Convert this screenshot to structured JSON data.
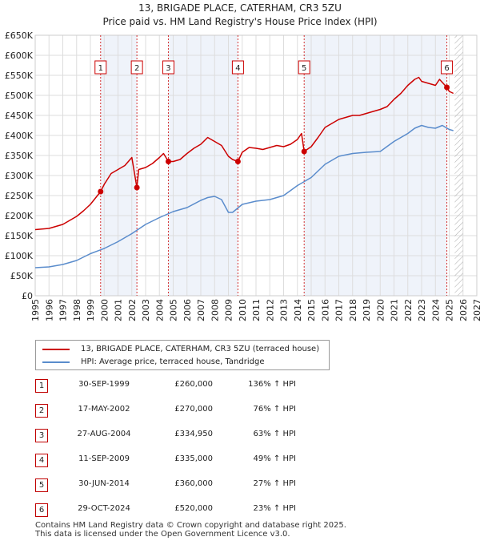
{
  "title": "13, BRIGADE PLACE, CATERHAM, CR3 5ZU",
  "subtitle": "Price paid vs. HM Land Registry's House Price Index (HPI)",
  "colors": {
    "property": "#cc0000",
    "hpi": "#5a8ccc",
    "marker_box": "#cc0000",
    "shade": "#e8eef8"
  },
  "legend": {
    "property_label": "13, BRIGADE PLACE, CATERHAM, CR3 5ZU (terraced house)",
    "hpi_label": "HPI: Average price, terraced house, Tandridge"
  },
  "sales": [
    {
      "num": "1",
      "date": "30-SEP-1999",
      "price": "£260,000",
      "hpi": "136% ↑ HPI"
    },
    {
      "num": "2",
      "date": "17-MAY-2002",
      "price": "£270,000",
      "hpi": "76% ↑ HPI"
    },
    {
      "num": "3",
      "date": "27-AUG-2004",
      "price": "£334,950",
      "hpi": "63% ↑ HPI"
    },
    {
      "num": "4",
      "date": "11-SEP-2009",
      "price": "£335,000",
      "hpi": "49% ↑ HPI"
    },
    {
      "num": "5",
      "date": "30-JUN-2014",
      "price": "£360,000",
      "hpi": "27% ↑ HPI"
    },
    {
      "num": "6",
      "date": "29-OCT-2024",
      "price": "£520,000",
      "hpi": "23% ↑ HPI"
    }
  ],
  "footer": {
    "line1": "Contains HM Land Registry data © Crown copyright and database right 2025.",
    "line2": "This data is licensed under the Open Government Licence v3.0."
  },
  "chart_data": {
    "type": "line",
    "title": "13, BRIGADE PLACE, CATERHAM, CR3 5ZU",
    "subtitle": "Price paid vs. HM Land Registry's House Price Index (HPI)",
    "xlabel": "",
    "ylabel": "",
    "xlim": [
      1995,
      2027
    ],
    "ylim": [
      0,
      650000
    ],
    "grid": true,
    "y_ticks": [
      0,
      50000,
      100000,
      150000,
      200000,
      250000,
      300000,
      350000,
      400000,
      450000,
      500000,
      550000,
      600000,
      650000
    ],
    "y_tick_labels": [
      "£0",
      "£50K",
      "£100K",
      "£150K",
      "£200K",
      "£250K",
      "£300K",
      "£350K",
      "£400K",
      "£450K",
      "£500K",
      "£550K",
      "£600K",
      "£650K"
    ],
    "x_ticks": [
      1995,
      1996,
      1997,
      1998,
      1999,
      2000,
      2001,
      2002,
      2003,
      2004,
      2005,
      2006,
      2007,
      2008,
      2009,
      2010,
      2011,
      2012,
      2013,
      2014,
      2015,
      2016,
      2017,
      2018,
      2019,
      2020,
      2021,
      2022,
      2023,
      2024,
      2025,
      2026,
      2027
    ],
    "future_hatch_from": 2025.4,
    "series": [
      {
        "name": "13, BRIGADE PLACE, CATERHAM, CR3 5ZU (terraced house)",
        "x": [
          1995.0,
          1996.0,
          1997.0,
          1998.0,
          1998.5,
          1999.0,
          1999.74,
          2000.0,
          2000.5,
          2001.0,
          2001.5,
          2002.0,
          2002.37,
          2002.5,
          2003.0,
          2003.5,
          2004.0,
          2004.3,
          2004.65,
          2005.0,
          2005.5,
          2006.0,
          2006.5,
          2007.0,
          2007.5,
          2008.0,
          2008.5,
          2009.0,
          2009.3,
          2009.69,
          2010.0,
          2010.5,
          2011.0,
          2011.5,
          2012.0,
          2012.5,
          2013.0,
          2013.5,
          2014.0,
          2014.3,
          2014.49,
          2015.0,
          2015.5,
          2016.0,
          2016.5,
          2017.0,
          2017.5,
          2018.0,
          2018.5,
          2019.0,
          2019.5,
          2020.0,
          2020.5,
          2021.0,
          2021.5,
          2022.0,
          2022.5,
          2022.8,
          2023.0,
          2023.5,
          2024.0,
          2024.3,
          2024.83,
          2025.0,
          2025.3
        ],
        "values": [
          165000,
          168000,
          178000,
          198000,
          212000,
          228000,
          260000,
          278000,
          305000,
          315000,
          325000,
          345000,
          270000,
          315000,
          320000,
          330000,
          345000,
          355000,
          334950,
          335000,
          340000,
          355000,
          368000,
          378000,
          395000,
          385000,
          375000,
          348000,
          340000,
          335000,
          358000,
          370000,
          368000,
          365000,
          370000,
          375000,
          372000,
          378000,
          390000,
          405000,
          360000,
          372000,
          395000,
          420000,
          430000,
          440000,
          445000,
          450000,
          450000,
          455000,
          460000,
          465000,
          472000,
          490000,
          505000,
          525000,
          540000,
          545000,
          535000,
          530000,
          525000,
          540000,
          520000,
          510000,
          505000
        ]
      },
      {
        "name": "HPI: Average price, terraced house, Tandridge",
        "x": [
          1995.0,
          1996.0,
          1997.0,
          1998.0,
          1999.0,
          2000.0,
          2001.0,
          2002.0,
          2003.0,
          2004.0,
          2005.0,
          2006.0,
          2007.0,
          2007.5,
          2008.0,
          2008.5,
          2009.0,
          2009.3,
          2010.0,
          2011.0,
          2012.0,
          2013.0,
          2014.0,
          2015.0,
          2016.0,
          2017.0,
          2018.0,
          2019.0,
          2020.0,
          2021.0,
          2022.0,
          2022.5,
          2023.0,
          2023.5,
          2024.0,
          2024.5,
          2025.0,
          2025.3
        ],
        "values": [
          70000,
          72000,
          78000,
          88000,
          105000,
          118000,
          135000,
          155000,
          178000,
          195000,
          210000,
          220000,
          238000,
          245000,
          248000,
          240000,
          208000,
          208000,
          228000,
          236000,
          240000,
          250000,
          275000,
          295000,
          328000,
          348000,
          355000,
          358000,
          360000,
          385000,
          405000,
          418000,
          425000,
          420000,
          418000,
          425000,
          415000,
          412000
        ]
      }
    ],
    "markers": [
      {
        "label": "1",
        "x": 1999.74,
        "y": 260000
      },
      {
        "label": "2",
        "x": 2002.37,
        "y": 270000
      },
      {
        "label": "3",
        "x": 2004.65,
        "y": 334950
      },
      {
        "label": "4",
        "x": 2009.69,
        "y": 335000
      },
      {
        "label": "5",
        "x": 2014.49,
        "y": 360000
      },
      {
        "label": "6",
        "x": 2024.83,
        "y": 520000
      }
    ]
  }
}
